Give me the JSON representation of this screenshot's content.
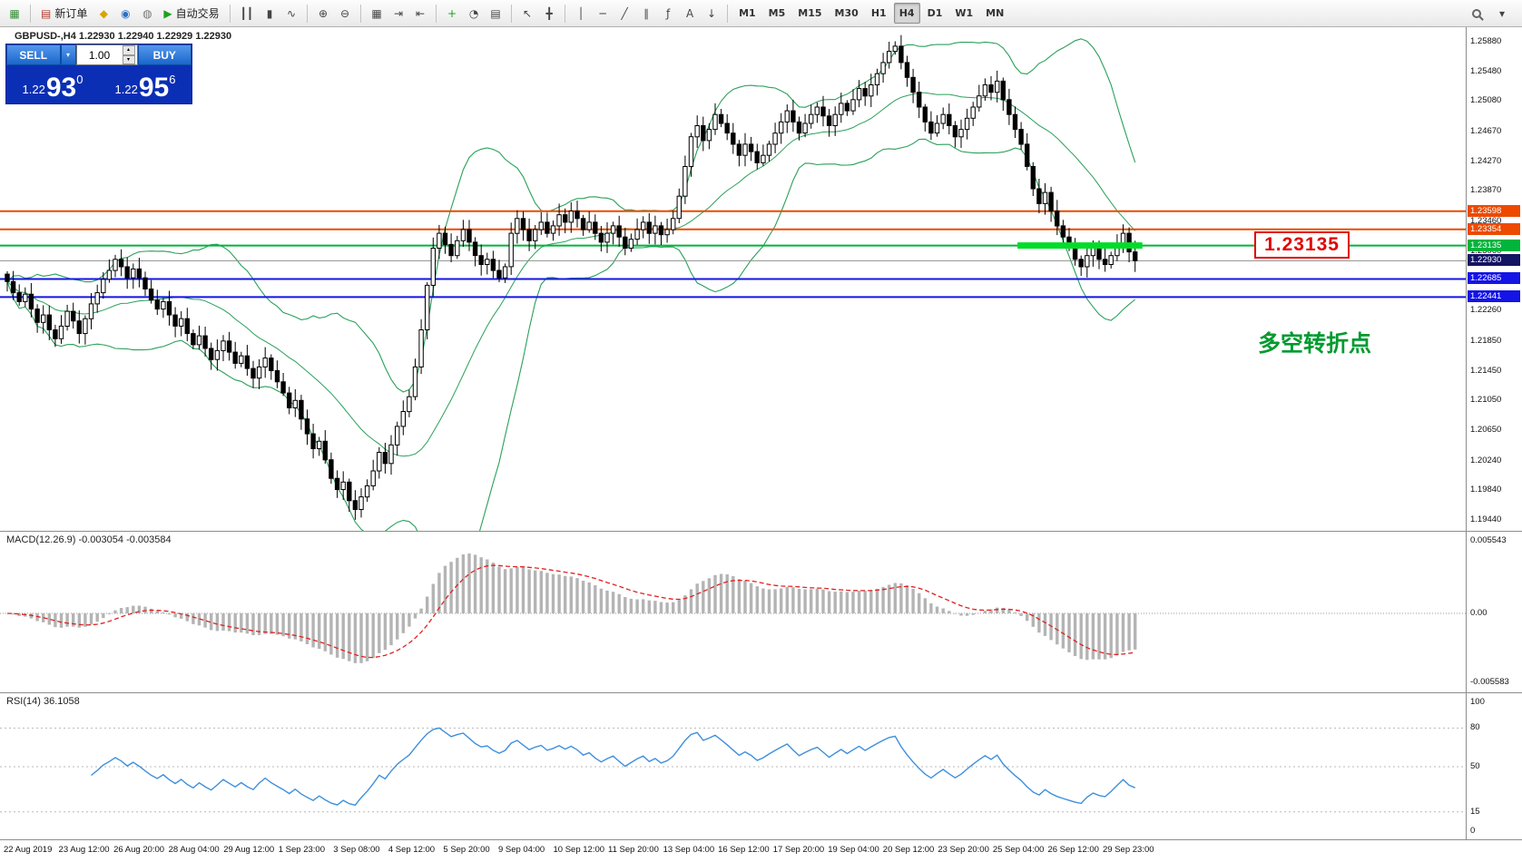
{
  "toolbar": {
    "groups": [
      {
        "buttons": [
          {
            "name": "chart-window-icon",
            "glyph": "▦",
            "glyph_color": "#3a8f3a"
          }
        ]
      },
      {
        "buttons": [
          {
            "name": "new-order-button",
            "glyph": "▤",
            "glyph_color": "#b23c2e",
            "label": "新订单"
          },
          {
            "name": "metaeditor-icon",
            "glyph": "◆",
            "glyph_color": "#d9a400"
          },
          {
            "name": "accounts-icon",
            "glyph": "◉",
            "glyph_color": "#2d6fc2"
          },
          {
            "name": "community-icon",
            "glyph": "◍",
            "glyph_color": "#777777"
          },
          {
            "name": "autotrading-button",
            "glyph": "▶",
            "glyph_color": "#1aa31a",
            "label": "自动交易"
          }
        ]
      },
      {
        "buttons": [
          {
            "name": "bar-chart-button",
            "glyph": "┃┃"
          },
          {
            "name": "candlestick-chart-button",
            "glyph": "▮"
          },
          {
            "name": "line-chart-button",
            "glyph": "∿"
          }
        ]
      },
      {
        "buttons": [
          {
            "name": "zoom-in-button",
            "glyph": "⊕"
          },
          {
            "name": "zoom-out-button",
            "glyph": "⊖"
          }
        ]
      },
      {
        "buttons": [
          {
            "name": "tile-windows-button",
            "glyph": "▦"
          },
          {
            "name": "auto-scroll-button",
            "glyph": "⇥"
          },
          {
            "name": "chart-shift-button",
            "glyph": "⇤"
          }
        ]
      },
      {
        "buttons": [
          {
            "name": "indicators-button",
            "glyph": "+",
            "glyph_color": "#1aa31a"
          },
          {
            "name": "periods-button",
            "glyph": "◔"
          },
          {
            "name": "templates-button",
            "glyph": "▤"
          }
        ]
      },
      {
        "buttons": [
          {
            "name": "cursor-button",
            "glyph": "↖"
          },
          {
            "name": "crosshair-button",
            "glyph": "╋"
          }
        ]
      },
      {
        "buttons": [
          {
            "name": "vertical-line-button",
            "glyph": "│"
          },
          {
            "name": "horizontal-line-button",
            "glyph": "─"
          },
          {
            "name": "trendline-button",
            "glyph": "╱"
          },
          {
            "name": "channel-button",
            "glyph": "∥"
          },
          {
            "name": "fibonacci-button",
            "glyph": "ƒ"
          },
          {
            "name": "text-button",
            "glyph": "A"
          },
          {
            "name": "arrows-button",
            "glyph": "↓"
          }
        ]
      },
      {
        "buttons": [
          {
            "name": "tf-m1-button",
            "text": "M1"
          },
          {
            "name": "tf-m5-button",
            "text": "M5"
          },
          {
            "name": "tf-m15-button",
            "text": "M15"
          },
          {
            "name": "tf-m30-button",
            "text": "M30"
          },
          {
            "name": "tf-h1-button",
            "text": "H1"
          },
          {
            "name": "tf-h4-button",
            "text": "H4",
            "active": true
          },
          {
            "name": "tf-d1-button",
            "text": "D1"
          },
          {
            "name": "tf-w1-button",
            "text": "W1"
          },
          {
            "name": "tf-mn-button",
            "text": "MN"
          }
        ]
      }
    ]
  },
  "chart": {
    "title_line": "GBPUSD-,H4  1.22930 1.22940 1.22929 1.22930",
    "trade_panel": {
      "sell_label": "SELL",
      "buy_label": "BUY",
      "volume": "1.00",
      "sell_price": {
        "prefix": "1.22",
        "big": "93",
        "sup": "0"
      },
      "buy_price": {
        "prefix": "1.22",
        "big": "95",
        "sup": "6"
      }
    },
    "price_axis_labels": [
      "1.25880",
      "1.25480",
      "1.25080",
      "1.24670",
      "1.24270",
      "1.23870",
      "1.23460",
      "1.23060",
      "1.22660",
      "1.22260",
      "1.21850",
      "1.21450",
      "1.21050",
      "1.20650",
      "1.20240",
      "1.19840",
      "1.19440"
    ],
    "hlines": [
      {
        "price": 1.23598,
        "label": "1.23598",
        "color": "#ed4a00"
      },
      {
        "price": 1.23354,
        "label": "1.23354",
        "color": "#ed4a00"
      },
      {
        "price": 1.23135,
        "label": "1.23135",
        "color": "#00b43c"
      },
      {
        "price": 1.22685,
        "label": "1.22685",
        "color": "#1414e6"
      },
      {
        "price": 1.22441,
        "label": "1.22441",
        "color": "#1414e6"
      }
    ],
    "current_price": {
      "price": 1.2293,
      "label": "1.22930",
      "line_color": "#909090",
      "badge_color": "#141464"
    },
    "highlight": {
      "price": 1.23135,
      "start_index": 169,
      "color": "#00dc28"
    },
    "price_alert_box": "1.23135",
    "turning_point_label": "多空转折点",
    "turning_point_anchor_price": 1.2186
  },
  "macd": {
    "header": "MACD(12.26.9) -0.003054 -0.003584",
    "axis_labels": [
      "0.005543",
      "0.00",
      "-0.005583"
    ]
  },
  "rsi": {
    "header": "RSI(14) 36.1058",
    "top_label": "100",
    "bottom_label": "0",
    "levels": [
      {
        "value": 80,
        "label": "80"
      },
      {
        "value": 50,
        "label": "50"
      },
      {
        "value": 15,
        "label": "15"
      }
    ]
  },
  "time_axis": {
    "labels": [
      "22 Aug 2019",
      "23 Aug 12:00",
      "26 Aug 20:00",
      "28 Aug 04:00",
      "29 Aug 12:00",
      "1 Sep 23:00",
      "3 Sep 08:00",
      "4 Sep 12:00",
      "5 Sep 20:00",
      "9 Sep 04:00",
      "10 Sep 12:00",
      "11 Sep 20:00",
      "13 Sep 04:00",
      "16 Sep 12:00",
      "17 Sep 20:00",
      "19 Sep 04:00",
      "20 Sep 12:00",
      "23 Sep 20:00",
      "25 Sep 04:00",
      "26 Sep 12:00",
      "29 Sep 23:00"
    ]
  },
  "chart_data": {
    "type": "candlestick",
    "symbol": "GBPUSD-",
    "timeframe": "H4",
    "price_min": 1.1944,
    "price_max": 1.2588,
    "first_open": 1.2275,
    "closes": [
      1.2265,
      1.225,
      1.2238,
      1.2248,
      1.2228,
      1.221,
      1.222,
      1.22,
      1.2188,
      1.2205,
      1.2225,
      1.2212,
      1.2195,
      1.2215,
      1.2235,
      1.225,
      1.2268,
      1.228,
      1.2295,
      1.2285,
      1.227,
      1.2282,
      1.227,
      1.2255,
      1.224,
      1.2228,
      1.2238,
      1.222,
      1.2205,
      1.2215,
      1.2195,
      1.218,
      1.2192,
      1.2175,
      1.216,
      1.2172,
      1.2185,
      1.217,
      1.2155,
      1.2165,
      1.2148,
      1.2135,
      1.215,
      1.2162,
      1.2145,
      1.213,
      1.2115,
      1.2095,
      1.2105,
      1.208,
      1.206,
      1.204,
      1.205,
      1.2025,
      1.2,
      1.1985,
      1.1995,
      1.197,
      1.1958,
      1.1975,
      1.199,
      1.201,
      1.2035,
      1.202,
      1.2045,
      1.207,
      1.209,
      1.211,
      1.215,
      1.22,
      1.226,
      1.231,
      1.233,
      1.2315,
      1.23,
      1.232,
      1.2335,
      1.2318,
      1.23,
      1.2288,
      1.2295,
      1.228,
      1.227,
      1.2285,
      1.233,
      1.235,
      1.2335,
      1.232,
      1.2335,
      1.2345,
      1.233,
      1.234,
      1.2355,
      1.2345,
      1.236,
      1.235,
      1.2335,
      1.2345,
      1.233,
      1.2318,
      1.233,
      1.234,
      1.2325,
      1.231,
      1.2322,
      1.2335,
      1.2345,
      1.233,
      1.234,
      1.2328,
      1.2335,
      1.235,
      1.238,
      1.242,
      1.246,
      1.2475,
      1.2455,
      1.247,
      1.249,
      1.2478,
      1.2465,
      1.245,
      1.2435,
      1.245,
      1.244,
      1.2425,
      1.2435,
      1.245,
      1.2465,
      1.248,
      1.2495,
      1.248,
      1.2465,
      1.2478,
      1.249,
      1.25,
      1.2488,
      1.2475,
      1.249,
      1.2505,
      1.2495,
      1.251,
      1.2525,
      1.2515,
      1.253,
      1.2545,
      1.256,
      1.2575,
      1.2582,
      1.256,
      1.254,
      1.252,
      1.25,
      1.248,
      1.2465,
      1.2478,
      1.249,
      1.2475,
      1.246,
      1.247,
      1.2485,
      1.25,
      1.2515,
      1.253,
      1.252,
      1.2535,
      1.251,
      1.249,
      1.247,
      1.245,
      1.242,
      1.239,
      1.237,
      1.2385,
      1.236,
      1.234,
      1.2325,
      1.231,
      1.2295,
      1.2285,
      1.23,
      1.231,
      1.2295,
      1.2288,
      1.23,
      1.2315,
      1.233,
      1.2305,
      1.2293
    ],
    "overlays": {
      "bollinger": {
        "period": 20,
        "deviation": 2,
        "color": "#2aa05a"
      }
    },
    "indicators": {
      "macd": {
        "fast": 12,
        "slow": 26,
        "signal": 9,
        "histogram_color": "#b4b4b4",
        "signal_color": "#e02020"
      },
      "rsi": {
        "period": 14,
        "color": "#3f8fdd"
      }
    }
  }
}
